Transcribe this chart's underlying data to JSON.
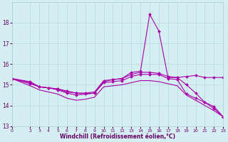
{
  "xlabel": "Windchill (Refroidissement éolien,°C)",
  "background_color": "#d4eef4",
  "line_color": "#aa00aa",
  "grid_color": "#b8d8e0",
  "xlim": [
    0,
    23
  ],
  "ylim": [
    13,
    19
  ],
  "yticks": [
    13,
    14,
    15,
    16,
    17,
    18
  ],
  "xtick_labels": [
    "0",
    "2",
    "3",
    "4",
    "5",
    "6",
    "7",
    "8",
    "9",
    "10",
    "11",
    "12",
    "13",
    "14",
    "15",
    "16",
    "17",
    "18",
    "19",
    "20",
    "21",
    "22",
    "23"
  ],
  "xtick_pos": [
    0,
    2,
    3,
    4,
    5,
    6,
    7,
    8,
    9,
    10,
    11,
    12,
    13,
    14,
    15,
    16,
    17,
    18,
    19,
    20,
    21,
    22,
    23
  ],
  "series": [
    {
      "x": [
        0,
        2,
        3,
        4,
        5,
        6,
        7,
        8,
        9,
        10,
        11,
        12,
        13,
        14,
        15,
        16,
        17,
        18,
        19,
        20,
        21,
        22,
        23
      ],
      "y": [
        15.3,
        15.15,
        14.9,
        14.85,
        14.8,
        14.7,
        14.6,
        14.55,
        14.6,
        15.15,
        15.25,
        15.3,
        15.6,
        15.65,
        18.4,
        17.6,
        15.35,
        15.35,
        15.4,
        15.45,
        15.35,
        15.35,
        15.35
      ],
      "marker": "D",
      "markersize": 2.0,
      "linewidth": 0.8
    },
    {
      "x": [
        0,
        2,
        3,
        4,
        5,
        6,
        7,
        8,
        9,
        10,
        11,
        12,
        13,
        14,
        15,
        16,
        17,
        18,
        19,
        20,
        21,
        22,
        23
      ],
      "y": [
        15.3,
        15.1,
        14.9,
        14.85,
        14.8,
        14.65,
        14.6,
        14.6,
        14.65,
        15.2,
        15.25,
        15.3,
        15.5,
        15.6,
        15.6,
        15.55,
        15.4,
        15.35,
        15.0,
        14.6,
        14.15,
        13.85,
        13.45
      ],
      "marker": "D",
      "markersize": 2.0,
      "linewidth": 0.8
    },
    {
      "x": [
        0,
        2,
        3,
        4,
        5,
        6,
        7,
        8,
        9,
        10,
        11,
        12,
        13,
        14,
        15,
        16,
        17,
        18,
        19,
        20,
        21,
        22,
        23
      ],
      "y": [
        15.3,
        15.05,
        14.9,
        14.85,
        14.75,
        14.6,
        14.5,
        14.55,
        14.6,
        15.1,
        15.15,
        15.2,
        15.4,
        15.5,
        15.5,
        15.5,
        15.3,
        15.25,
        14.55,
        14.35,
        14.15,
        13.95,
        13.45
      ],
      "marker": "D",
      "markersize": 2.0,
      "linewidth": 0.8
    },
    {
      "x": [
        0,
        2,
        3,
        4,
        5,
        6,
        7,
        8,
        9,
        10,
        11,
        12,
        13,
        14,
        15,
        16,
        17,
        18,
        19,
        20,
        21,
        22,
        23
      ],
      "y": [
        15.3,
        14.95,
        14.75,
        14.65,
        14.55,
        14.35,
        14.25,
        14.3,
        14.4,
        14.9,
        14.95,
        15.0,
        15.1,
        15.2,
        15.2,
        15.15,
        15.05,
        14.95,
        14.5,
        14.25,
        14.0,
        13.75,
        13.45
      ],
      "marker": null,
      "markersize": 0,
      "linewidth": 0.8
    }
  ]
}
